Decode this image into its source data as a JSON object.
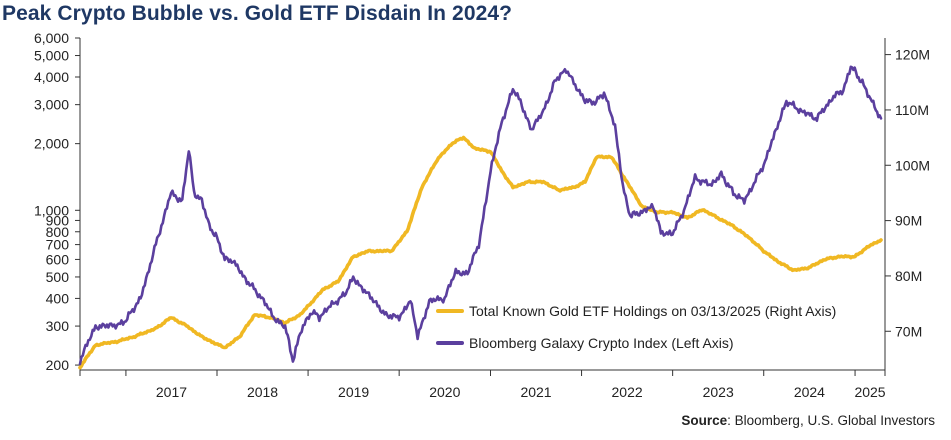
{
  "page": {
    "title": "Peak Crypto Bubble vs. Gold ETF Disdain In 2024?",
    "source_label": "Source",
    "source_text": ": Bloomberg, U.S. Global Investors"
  },
  "chart_data": {
    "type": "line",
    "title": "Peak Crypto Bubble vs. Gold ETF Disdain In 2024?",
    "x_axis": {
      "type": "time",
      "range": [
        "2016-07-01",
        "2025-05-01"
      ],
      "tick_labels": [
        "2017",
        "2018",
        "2019",
        "2020",
        "2021",
        "2022",
        "2023",
        "2024",
        "2025"
      ],
      "tick_boundaries": [
        "2016-07-01",
        "2017-01-01",
        "2018-01-01",
        "2019-01-01",
        "2020-01-01",
        "2021-01-01",
        "2022-01-01",
        "2023-01-01",
        "2024-01-01",
        "2025-01-01",
        "2025-05-01"
      ]
    },
    "y_left": {
      "scale": "log",
      "range": [
        190,
        6000
      ],
      "tick_labels": [
        "200",
        "300",
        "400",
        "500",
        "600",
        "700",
        "800",
        "900",
        "1,000",
        "2,000",
        "3,000",
        "4,000",
        "5,000",
        "6,000"
      ],
      "tick_values": [
        200,
        300,
        400,
        500,
        600,
        700,
        800,
        900,
        1000,
        2000,
        3000,
        4000,
        5000,
        6000
      ]
    },
    "y_right": {
      "scale": "linear",
      "range": [
        63,
        123
      ],
      "tick_labels": [
        "70M",
        "80M",
        "90M",
        "100M",
        "110M",
        "120M"
      ],
      "tick_values": [
        70,
        80,
        90,
        100,
        110,
        120
      ]
    },
    "legend": {
      "placement": "lower-right"
    },
    "grid": false,
    "series": [
      {
        "name": "Total Known Gold ETF Holdings on 03/13/2025 (Right Axis)",
        "axis": "right",
        "unit": "M",
        "color": "#f0b823",
        "points": [
          [
            "2016-07-01",
            63.5
          ],
          [
            "2016-09-01",
            67.5
          ],
          [
            "2016-12-01",
            68.2
          ],
          [
            "2017-02-01",
            69.0
          ],
          [
            "2017-05-01",
            70.5
          ],
          [
            "2017-07-01",
            72.5
          ],
          [
            "2017-09-01",
            71.0
          ],
          [
            "2017-11-01",
            69.0
          ],
          [
            "2018-02-01",
            67.0
          ],
          [
            "2018-04-01",
            69.0
          ],
          [
            "2018-06-01",
            73.0
          ],
          [
            "2018-08-01",
            72.5
          ],
          [
            "2018-10-01",
            71.5
          ],
          [
            "2018-12-01",
            73.0
          ],
          [
            "2019-03-01",
            77.5
          ],
          [
            "2019-05-01",
            79.0
          ],
          [
            "2019-07-01",
            83.5
          ],
          [
            "2019-09-01",
            84.5
          ],
          [
            "2019-12-01",
            84.5
          ],
          [
            "2020-02-01",
            88.0
          ],
          [
            "2020-04-01",
            96.0
          ],
          [
            "2020-06-01",
            101.0
          ],
          [
            "2020-08-01",
            104.0
          ],
          [
            "2020-09-15",
            105.0
          ],
          [
            "2020-11-01",
            103.0
          ],
          [
            "2021-01-01",
            102.5
          ],
          [
            "2021-02-15",
            99.0
          ],
          [
            "2021-04-01",
            96.0
          ],
          [
            "2021-06-01",
            97.0
          ],
          [
            "2021-08-01",
            97.0
          ],
          [
            "2021-10-01",
            95.5
          ],
          [
            "2021-12-01",
            96.0
          ],
          [
            "2022-01-15",
            97.0
          ],
          [
            "2022-03-01",
            101.5
          ],
          [
            "2022-05-01",
            101.5
          ],
          [
            "2022-07-01",
            97.0
          ],
          [
            "2022-09-01",
            92.5
          ],
          [
            "2022-11-01",
            91.5
          ],
          [
            "2023-01-01",
            91.5
          ],
          [
            "2023-03-01",
            90.5
          ],
          [
            "2023-05-01",
            92.0
          ],
          [
            "2023-07-01",
            90.5
          ],
          [
            "2023-09-01",
            89.0
          ],
          [
            "2023-11-01",
            87.0
          ],
          [
            "2024-01-01",
            84.5
          ],
          [
            "2024-03-01",
            82.5
          ],
          [
            "2024-05-01",
            81.0
          ],
          [
            "2024-07-01",
            81.5
          ],
          [
            "2024-09-01",
            83.0
          ],
          [
            "2024-11-01",
            83.5
          ],
          [
            "2025-01-01",
            83.5
          ],
          [
            "2025-03-01",
            85.5
          ],
          [
            "2025-04-15",
            86.5
          ]
        ]
      },
      {
        "name": "Bloomberg Galaxy Crypto Index (Left Axis)",
        "axis": "left",
        "color": "#5b3f9e",
        "points": [
          [
            "2016-07-01",
            210
          ],
          [
            "2016-09-01",
            300
          ],
          [
            "2016-11-15",
            300
          ],
          [
            "2017-01-01",
            320
          ],
          [
            "2017-03-01",
            400
          ],
          [
            "2017-05-01",
            700
          ],
          [
            "2017-07-01",
            1200
          ],
          [
            "2017-08-15",
            1100
          ],
          [
            "2017-09-10",
            1900
          ],
          [
            "2017-10-01",
            1200
          ],
          [
            "2017-11-01",
            1100
          ],
          [
            "2017-12-01",
            850
          ],
          [
            "2018-01-01",
            750
          ],
          [
            "2018-02-01",
            600
          ],
          [
            "2018-03-01",
            600
          ],
          [
            "2018-05-01",
            480
          ],
          [
            "2018-07-01",
            400
          ],
          [
            "2018-08-15",
            330
          ],
          [
            "2018-10-01",
            300
          ],
          [
            "2018-11-01",
            210
          ],
          [
            "2018-12-01",
            280
          ],
          [
            "2019-01-15",
            350
          ],
          [
            "2019-02-15",
            330
          ],
          [
            "2019-04-01",
            370
          ],
          [
            "2019-06-01",
            420
          ],
          [
            "2019-07-01",
            500
          ],
          [
            "2019-08-15",
            430
          ],
          [
            "2019-10-01",
            380
          ],
          [
            "2019-11-15",
            330
          ],
          [
            "2020-01-01",
            330
          ],
          [
            "2020-02-15",
            390
          ],
          [
            "2020-03-15",
            270
          ],
          [
            "2020-05-01",
            390
          ],
          [
            "2020-07-01",
            400
          ],
          [
            "2020-08-15",
            530
          ],
          [
            "2020-10-01",
            520
          ],
          [
            "2020-11-15",
            700
          ],
          [
            "2021-01-01",
            1500
          ],
          [
            "2021-02-15",
            2500
          ],
          [
            "2021-04-01",
            3500
          ],
          [
            "2021-05-01",
            3100
          ],
          [
            "2021-06-15",
            2300
          ],
          [
            "2021-08-01",
            2800
          ],
          [
            "2021-09-15",
            3800
          ],
          [
            "2021-11-01",
            4300
          ],
          [
            "2021-12-01",
            3800
          ],
          [
            "2022-01-15",
            3100
          ],
          [
            "2022-03-01",
            3100
          ],
          [
            "2022-04-01",
            3400
          ],
          [
            "2022-05-15",
            2400
          ],
          [
            "2022-06-15",
            1300
          ],
          [
            "2022-07-15",
            950
          ],
          [
            "2022-09-01",
            980
          ],
          [
            "2022-10-15",
            1050
          ],
          [
            "2022-11-15",
            800
          ],
          [
            "2023-01-01",
            780
          ],
          [
            "2023-02-15",
            1000
          ],
          [
            "2023-04-01",
            1400
          ],
          [
            "2023-06-01",
            1300
          ],
          [
            "2023-07-15",
            1450
          ],
          [
            "2023-09-01",
            1200
          ],
          [
            "2023-10-15",
            1100
          ],
          [
            "2024-01-01",
            1600
          ],
          [
            "2024-03-01",
            2500
          ],
          [
            "2024-04-01",
            3100
          ],
          [
            "2024-06-01",
            2800
          ],
          [
            "2024-08-01",
            2600
          ],
          [
            "2024-10-01",
            3200
          ],
          [
            "2024-11-15",
            3500
          ],
          [
            "2024-12-15",
            4500
          ],
          [
            "2025-01-15",
            4000
          ],
          [
            "2025-02-15",
            3500
          ],
          [
            "2025-03-15",
            3000
          ],
          [
            "2025-04-15",
            2600
          ]
        ]
      }
    ]
  }
}
